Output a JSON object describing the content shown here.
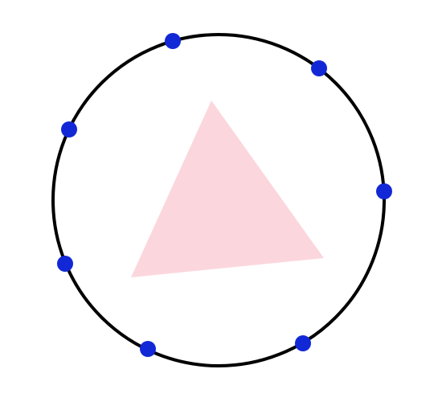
{
  "colors": {
    "background": "#ffffff",
    "circle_stroke": "#000000",
    "triangle_fill": "#fbd7dd",
    "point_fill": "#1228d6"
  },
  "elements": {
    "circle": {
      "present": true
    },
    "triangle": {
      "present": true
    },
    "points_count": 7
  }
}
